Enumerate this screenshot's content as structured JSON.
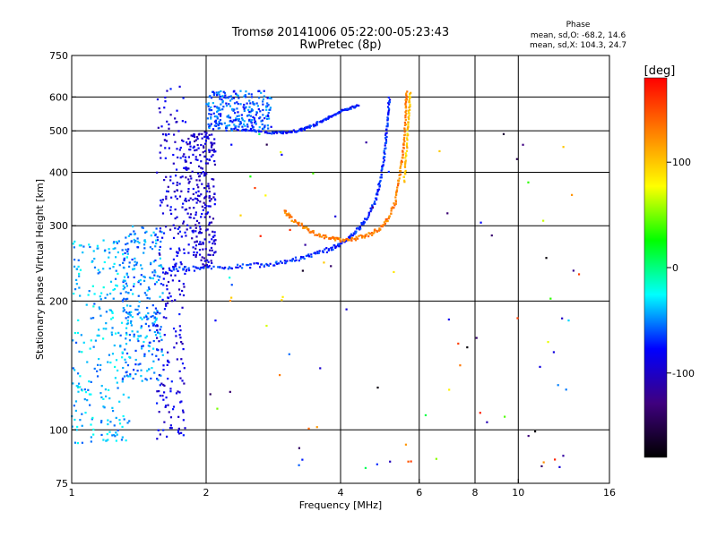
{
  "chart_data": {
    "type": "scatter",
    "title": "Tromsø 20141006 05:22:00-05:23:43",
    "subtitle": "RwPretec (8p)",
    "xlabel": "Frequency [MHz]",
    "ylabel": "Stationary phase Virtual Height [km]",
    "x_scale": "log",
    "y_scale": "log",
    "xlim": [
      1,
      16
    ],
    "ylim": [
      75,
      750
    ],
    "x_ticks": [
      1,
      2,
      4,
      6,
      8,
      10,
      16
    ],
    "y_ticks": [
      75,
      100,
      200,
      300,
      400,
      500,
      600,
      750
    ],
    "grid_x": [
      2,
      4,
      6,
      8,
      10
    ],
    "grid_y": [
      100,
      200,
      300,
      400,
      500,
      600
    ],
    "phase_info": {
      "title": "Phase",
      "line_o": "mean, sd,O: -68.2, 14.6",
      "line_x": "mean, sd,X: 104.3, 24.7"
    },
    "colorbar": {
      "label": "[deg]",
      "range": [
        -180,
        180
      ],
      "ticks": [
        100,
        0,
        -100
      ],
      "tick_labels": [
        "100",
        "0",
        "-100"
      ],
      "stops": [
        "#000000",
        "#3f007f",
        "#0000ff",
        "#00ffff",
        "#00ff00",
        "#ffff00",
        "#ff8000",
        "#ff0000"
      ]
    },
    "series": [
      {
        "trace": "o-mode-F2-lower",
        "phase": -70,
        "points": [
          [
            1.65,
            238
          ],
          [
            1.8,
            238
          ],
          [
            2.0,
            239
          ],
          [
            2.3,
            241
          ],
          [
            2.6,
            243
          ],
          [
            2.9,
            246
          ],
          [
            3.2,
            251
          ],
          [
            3.5,
            257
          ],
          [
            3.8,
            265
          ],
          [
            4.0,
            272
          ],
          [
            4.2,
            282
          ],
          [
            4.4,
            296
          ],
          [
            4.6,
            315
          ],
          [
            4.8,
            345
          ],
          [
            4.9,
            380
          ],
          [
            5.0,
            430
          ],
          [
            5.05,
            480
          ],
          [
            5.1,
            540
          ],
          [
            5.15,
            600
          ]
        ]
      },
      {
        "trace": "o-mode-F1-upper",
        "phase": -75,
        "points": [
          [
            2.2,
            510
          ],
          [
            2.5,
            500
          ],
          [
            2.8,
            495
          ],
          [
            3.0,
            495
          ],
          [
            3.2,
            500
          ],
          [
            3.4,
            510
          ],
          [
            3.6,
            525
          ],
          [
            3.8,
            540
          ],
          [
            4.0,
            555
          ],
          [
            4.2,
            565
          ],
          [
            4.4,
            575
          ]
        ]
      },
      {
        "trace": "x-mode-F2",
        "phase": 130,
        "points": [
          [
            3.0,
            325
          ],
          [
            3.1,
            312
          ],
          [
            3.3,
            298
          ],
          [
            3.5,
            288
          ],
          [
            3.8,
            280
          ],
          [
            4.0,
            278
          ],
          [
            4.3,
            280
          ],
          [
            4.6,
            285
          ],
          [
            4.9,
            295
          ],
          [
            5.1,
            310
          ],
          [
            5.3,
            340
          ],
          [
            5.4,
            380
          ],
          [
            5.5,
            430
          ],
          [
            5.55,
            480
          ],
          [
            5.6,
            560
          ],
          [
            5.62,
            620
          ]
        ]
      },
      {
        "trace": "x-mode-upper-faint",
        "phase": 100,
        "points": [
          [
            5.55,
            380
          ],
          [
            5.6,
            430
          ],
          [
            5.65,
            500
          ],
          [
            5.7,
            560
          ],
          [
            5.72,
            620
          ]
        ]
      }
    ],
    "clusters": [
      {
        "x": [
          1.55,
          1.8
        ],
        "y": [
          95,
          640
        ],
        "phase": -90
      },
      {
        "x": [
          1.3,
          1.6
        ],
        "y": [
          130,
          300
        ],
        "phase": -50
      },
      {
        "x": [
          1.0,
          1.35
        ],
        "y": [
          93,
          280
        ],
        "phase": -40
      },
      {
        "x": [
          1.8,
          2.1
        ],
        "y": [
          240,
          500
        ],
        "phase": -95
      },
      {
        "x": [
          2.0,
          2.8
        ],
        "y": [
          500,
          620
        ],
        "phase": -60
      }
    ]
  }
}
